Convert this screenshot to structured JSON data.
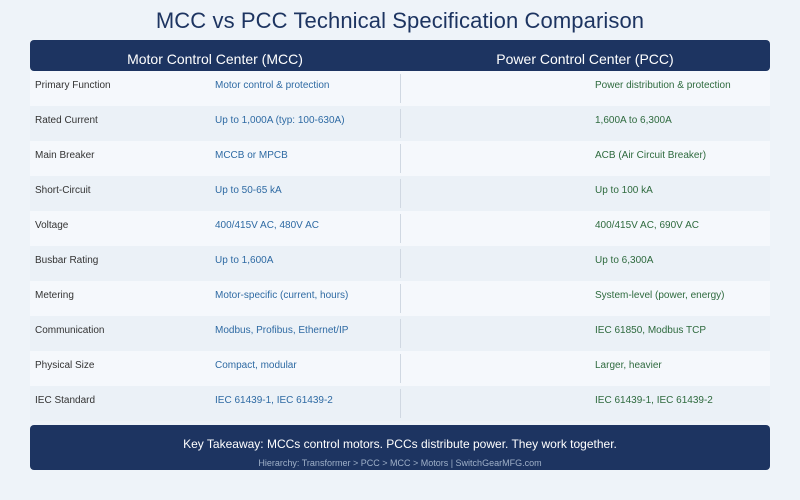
{
  "title": "MCC vs PCC Technical Specification Comparison",
  "columns": {
    "mcc": "Motor Control Center (MCC)",
    "pcc": "Power Control Center (PCC)"
  },
  "rows": [
    {
      "label": "Primary Function",
      "mcc": "Motor control & protection",
      "pcc": "Power distribution & protection"
    },
    {
      "label": "Rated Current",
      "mcc": "Up to 1,000A (typ: 100-630A)",
      "pcc": "1,600A to 6,300A"
    },
    {
      "label": "Main Breaker",
      "mcc": "MCCB or MPCB",
      "pcc": "ACB (Air Circuit Breaker)"
    },
    {
      "label": "Short-Circuit",
      "mcc": "Up to 50-65 kA",
      "pcc": "Up to 100 kA"
    },
    {
      "label": "Voltage",
      "mcc": "400/415V AC, 480V AC",
      "pcc": "400/415V AC, 690V AC"
    },
    {
      "label": "Busbar Rating",
      "mcc": "Up to 1,600A",
      "pcc": "Up to 6,300A"
    },
    {
      "label": "Metering",
      "mcc": "Motor-specific (current, hours)",
      "pcc": "System-level (power, energy)"
    },
    {
      "label": "Communication",
      "mcc": "Modbus, Profibus, Ethernet/IP",
      "pcc": "IEC 61850, Modbus TCP"
    },
    {
      "label": "Physical Size",
      "mcc": "Compact, modular",
      "pcc": "Larger, heavier"
    },
    {
      "label": "IEC Standard",
      "mcc": "IEC 61439-1, IEC 61439-2",
      "pcc": "IEC 61439-1, IEC 61439-2"
    }
  ],
  "footer": {
    "takeaway": "Key Takeaway: MCCs control motors. PCCs distribute power. They work together.",
    "hierarchy": "Hierarchy: Transformer > PCC > MCC > Motors | SwitchGearMFG.com"
  },
  "colors": {
    "navy": "#1d3461",
    "mcc_text": "#2e6aa3",
    "pcc_text": "#2e6a3e"
  }
}
